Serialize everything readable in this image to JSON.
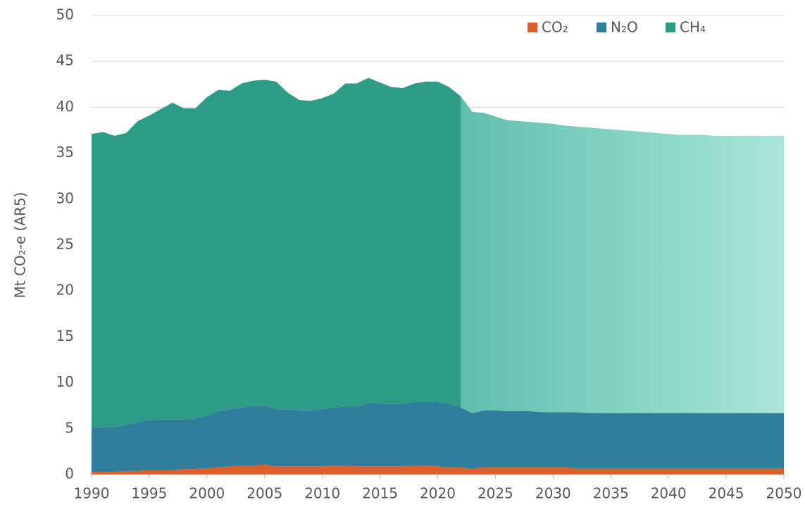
{
  "chart_data": {
    "type": "stacked_area",
    "y_label": "Mt CO₂-e (AR5)",
    "x": [
      1990,
      1991,
      1992,
      1993,
      1994,
      1995,
      1996,
      1997,
      1998,
      1999,
      2000,
      2001,
      2002,
      2003,
      2004,
      2005,
      2006,
      2007,
      2008,
      2009,
      2010,
      2011,
      2012,
      2013,
      2014,
      2015,
      2016,
      2017,
      2018,
      2019,
      2020,
      2021,
      2022,
      2023,
      2024,
      2025,
      2026,
      2027,
      2028,
      2029,
      2030,
      2031,
      2032,
      2033,
      2034,
      2035,
      2036,
      2037,
      2038,
      2039,
      2040,
      2041,
      2042,
      2043,
      2044,
      2045,
      2046,
      2047,
      2048,
      2049,
      2050
    ],
    "series": [
      {
        "name": "CO₂",
        "color": "#d9602b",
        "values": [
          0.3,
          0.3,
          0.3,
          0.4,
          0.4,
          0.5,
          0.5,
          0.5,
          0.6,
          0.6,
          0.7,
          0.8,
          0.9,
          1.0,
          1.0,
          1.1,
          0.9,
          0.9,
          0.9,
          0.9,
          0.9,
          1.0,
          1.0,
          0.9,
          0.9,
          0.9,
          0.9,
          0.9,
          1.0,
          1.0,
          0.9,
          0.8,
          0.8,
          0.6,
          0.8,
          0.8,
          0.8,
          0.8,
          0.8,
          0.8,
          0.8,
          0.8,
          0.7,
          0.7,
          0.7,
          0.7,
          0.7,
          0.7,
          0.7,
          0.7,
          0.7,
          0.7,
          0.7,
          0.7,
          0.7,
          0.7,
          0.7,
          0.7,
          0.7,
          0.7,
          0.7
        ]
      },
      {
        "name": "N₂O",
        "color": "#2e7d9a",
        "values": [
          4.7,
          4.9,
          4.9,
          5.0,
          5.3,
          5.4,
          5.5,
          5.5,
          5.4,
          5.5,
          5.7,
          6.1,
          6.2,
          6.3,
          6.5,
          6.4,
          6.2,
          6.2,
          6.1,
          6.1,
          6.2,
          6.3,
          6.4,
          6.5,
          6.9,
          6.8,
          6.8,
          6.8,
          6.9,
          6.9,
          7.0,
          6.9,
          6.5,
          6.1,
          6.2,
          6.2,
          6.1,
          6.1,
          6.1,
          6.0,
          6.0,
          6.0,
          6.1,
          6.0,
          6.0,
          6.0,
          6.0,
          6.0,
          6.0,
          6.0,
          6.0,
          6.0,
          6.0,
          6.0,
          6.0,
          6.0,
          6.0,
          6.0,
          6.0,
          6.0,
          6.0
        ]
      },
      {
        "name": "CH₄",
        "color": "#2e9b87",
        "values": [
          32.1,
          32.1,
          31.7,
          31.8,
          32.8,
          33.2,
          33.8,
          34.5,
          33.9,
          33.8,
          34.7,
          35.0,
          34.7,
          35.3,
          35.4,
          35.5,
          35.7,
          34.5,
          33.8,
          33.7,
          33.9,
          34.2,
          35.2,
          35.2,
          35.4,
          35.0,
          34.5,
          34.4,
          34.7,
          34.9,
          34.9,
          34.5,
          33.9,
          32.8,
          32.4,
          32.0,
          31.7,
          31.6,
          31.5,
          31.5,
          31.4,
          31.2,
          31.1,
          31.1,
          31.0,
          30.9,
          30.8,
          30.7,
          30.6,
          30.5,
          30.4,
          30.3,
          30.3,
          30.3,
          30.2,
          30.2,
          30.2,
          30.2,
          30.2,
          30.2,
          30.2
        ]
      }
    ],
    "xlim": [
      1990,
      2050
    ],
    "xticks": [
      1990,
      1995,
      2000,
      2005,
      2010,
      2015,
      2020,
      2025,
      2030,
      2035,
      2040,
      2045,
      2050
    ],
    "ylim": [
      0,
      50
    ],
    "yticks": [
      0,
      5,
      10,
      15,
      20,
      25,
      30,
      35,
      40,
      45,
      50
    ],
    "grid": true,
    "legend": "top"
  }
}
